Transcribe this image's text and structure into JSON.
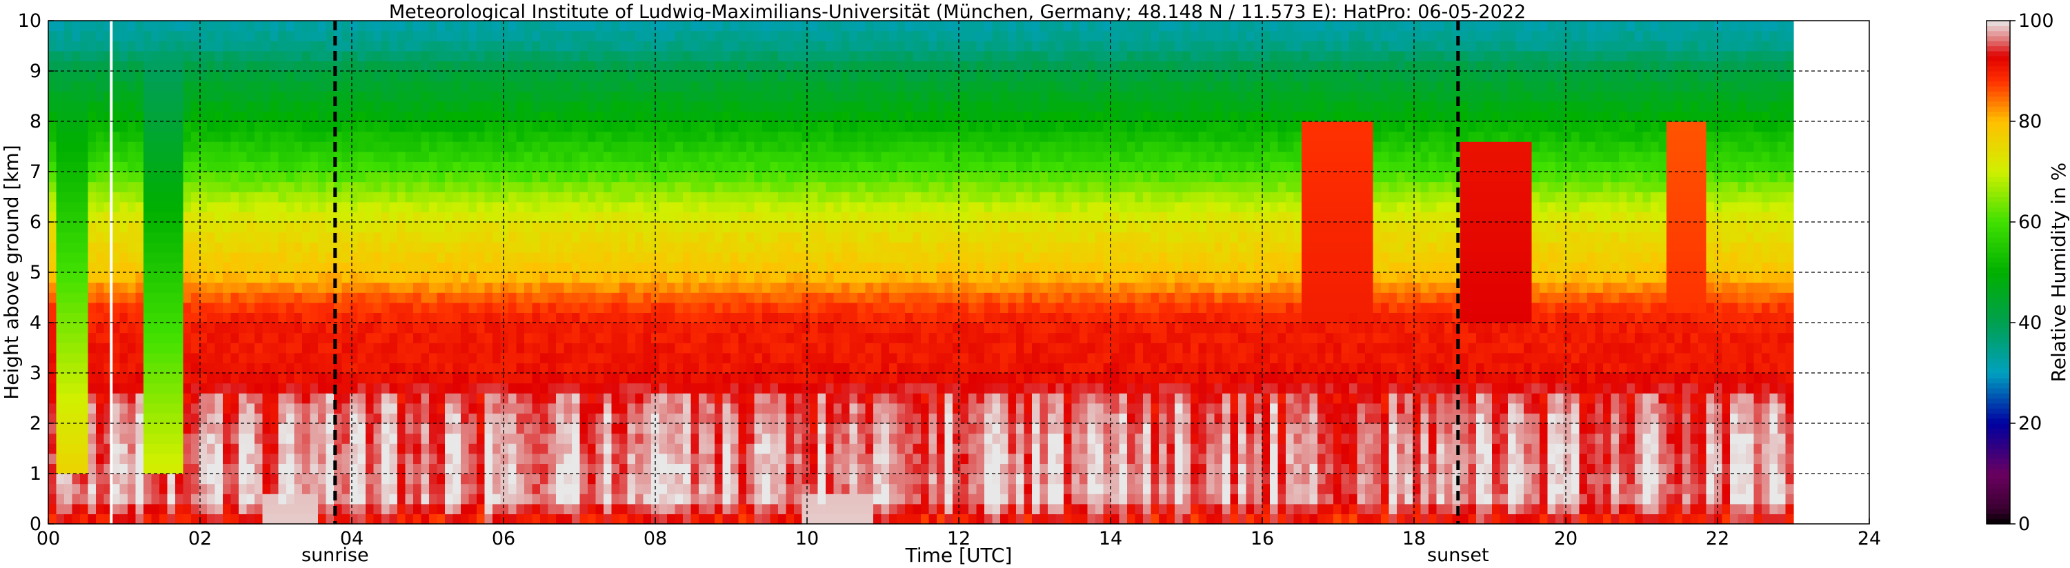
{
  "chart_data": {
    "type": "heatmap",
    "title": "Meteorological Institute of Ludwig-Maximilians-Universität (München, Germany; 48.148 N / 11.573 E):    HatPro: 06-05-2022",
    "xlabel": "Time [UTC]",
    "ylabel": "Height above ground [km]",
    "xlim": [
      0,
      24
    ],
    "ylim": [
      0,
      10
    ],
    "x_ticks": [
      "00",
      "02",
      "04",
      "06",
      "08",
      "10",
      "12",
      "14",
      "16",
      "18",
      "20",
      "22",
      "24"
    ],
    "y_ticks": [
      "0",
      "1",
      "2",
      "3",
      "4",
      "5",
      "6",
      "7",
      "8",
      "9",
      "10"
    ],
    "grid": true,
    "data_end_hour": 23.0,
    "colorbar": {
      "label": "Relative Humidity in %",
      "range": [
        0,
        100
      ],
      "ticks": [
        "0",
        "20",
        "40",
        "60",
        "80",
        "100"
      ],
      "stops": [
        {
          "value": 0,
          "color": "#000000"
        },
        {
          "value": 3,
          "color": "#3a0030"
        },
        {
          "value": 10,
          "color": "#6a0060"
        },
        {
          "value": 20,
          "color": "#0000a0"
        },
        {
          "value": 30,
          "color": "#00a0c0"
        },
        {
          "value": 40,
          "color": "#00a050"
        },
        {
          "value": 50,
          "color": "#00b000"
        },
        {
          "value": 60,
          "color": "#40e000"
        },
        {
          "value": 70,
          "color": "#d0f000"
        },
        {
          "value": 80,
          "color": "#ffc000"
        },
        {
          "value": 88,
          "color": "#ff3000"
        },
        {
          "value": 93,
          "color": "#e00000"
        },
        {
          "value": 96,
          "color": "#e07070"
        },
        {
          "value": 100,
          "color": "#e8e8e8"
        }
      ]
    },
    "markers": [
      {
        "label": "sunrise",
        "hour": 3.78
      },
      {
        "label": "sunset",
        "hour": 18.58
      }
    ],
    "missing_data_hours": [
      0.83
    ],
    "humidity_profile": {
      "height_km": [
        0,
        0.5,
        1.0,
        2.0,
        2.6,
        3.0,
        4.0,
        4.4,
        5.0,
        6.0,
        6.5,
        7.0,
        8.0,
        9.0,
        9.5,
        10.0
      ],
      "rh_percent": [
        90,
        97,
        97,
        96,
        94,
        91,
        90,
        87,
        79,
        73,
        67,
        60,
        50,
        42,
        35,
        32
      ]
    },
    "features": [
      {
        "name": "dry-column",
        "hours": [
          0.1,
          0.5
        ],
        "rh_percent": 40
      },
      {
        "name": "dry-column",
        "hours": [
          1.3,
          1.8
        ],
        "rh_percent": 35
      },
      {
        "name": "saturated-near-surface",
        "hours": [
          2.8,
          3.6
        ],
        "height_km": [
          0,
          0.6
        ],
        "rh_percent": 99
      },
      {
        "name": "saturated-near-surface",
        "hours": [
          9.9,
          10.9
        ],
        "height_km": [
          0,
          0.6
        ],
        "rh_percent": 99
      },
      {
        "name": "moist-upper",
        "hours": [
          16.5,
          17.5
        ],
        "height_km": [
          4,
          8
        ],
        "rh_percent": 90
      },
      {
        "name": "moist-upper",
        "hours": [
          18.6,
          19.5
        ],
        "height_km": [
          4,
          7.5
        ],
        "rh_percent": 93
      },
      {
        "name": "moist-upper",
        "hours": [
          21.3,
          21.8
        ],
        "height_km": [
          4,
          8
        ],
        "rh_percent": 88
      }
    ]
  }
}
